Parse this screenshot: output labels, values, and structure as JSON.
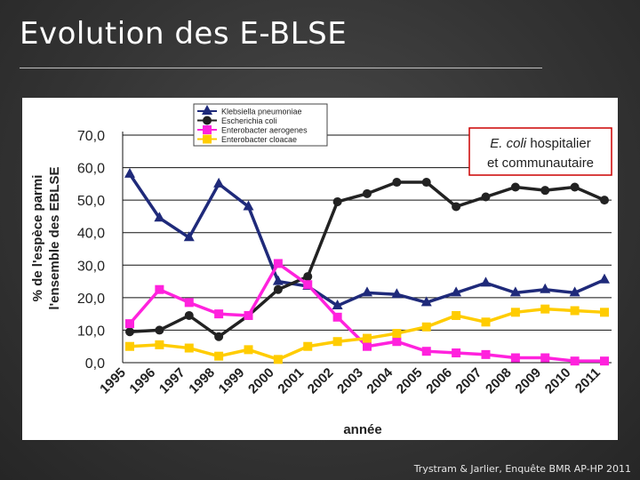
{
  "slide": {
    "title": "Evolution des E-BLSE",
    "credit": "Trystram & Jarlier, Enquête BMR AP-HP 2011"
  },
  "chart_data": {
    "type": "line",
    "title": "",
    "xlabel": "année",
    "ylabel_line1": "% de l'espèce parmi",
    "ylabel_line2": "l'ensemble des EBLSE",
    "ylim": [
      0,
      70
    ],
    "y_ticks": [
      "0,0",
      "10,0",
      "20,0",
      "30,0",
      "40,0",
      "50,0",
      "60,0",
      "70,0"
    ],
    "grid": true,
    "legend_position": "top-center",
    "categories": [
      "1995",
      "1996",
      "1997",
      "1998",
      "1999",
      "2000",
      "2001",
      "2002",
      "2003",
      "2004",
      "2005",
      "2006",
      "2007",
      "2008",
      "2009",
      "2010",
      "2011"
    ],
    "series": [
      {
        "name": "Klebsiella pneumoniae",
        "color": "#1f2a7a",
        "marker": "triangle",
        "values": [
          58,
          44.5,
          38.5,
          55,
          48,
          25,
          23.5,
          17.5,
          21.5,
          21,
          18.5,
          21.5,
          24.5,
          21.5,
          22.5,
          21.5,
          25.5
        ]
      },
      {
        "name": "Escherichia coli",
        "color": "#222222",
        "marker": "circle",
        "values": [
          9.5,
          10,
          14.5,
          8,
          14.5,
          22.5,
          26.5,
          49.5,
          52,
          55.5,
          55.5,
          48,
          51,
          54,
          53,
          54,
          50
        ]
      },
      {
        "name": "Enterobacter aerogenes",
        "color": "#ff22dd",
        "marker": "square",
        "values": [
          12,
          22.5,
          18.5,
          15,
          14.5,
          30.5,
          24,
          14,
          5,
          6.5,
          3.5,
          3,
          2.5,
          1.5,
          1.5,
          0.5,
          0.5
        ]
      },
      {
        "name": "Enterobacter cloacae",
        "color": "#ffcc00",
        "marker": "square",
        "values": [
          5,
          5.5,
          4.5,
          2,
          4,
          1,
          5,
          6.5,
          7.5,
          9,
          11,
          14.5,
          12.5,
          15.5,
          16.5,
          16,
          15.5
        ]
      }
    ],
    "annotation": {
      "italic_part": "E. coli",
      "line1_rest": " hospitalier",
      "line2": "et communautaire",
      "border_color": "#cc0000"
    }
  }
}
